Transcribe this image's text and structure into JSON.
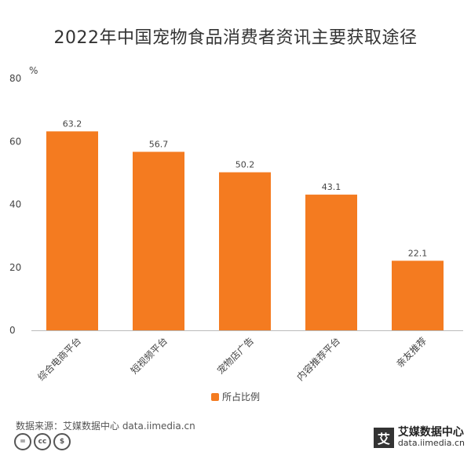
{
  "chart_data": {
    "type": "bar",
    "title": "2022年中国宠物食品消费者资讯主要获取途径",
    "unit": "%",
    "categories": [
      "综合电商平台",
      "短视频平台",
      "宠物店广告",
      "内容推荐平台",
      "亲友推荐"
    ],
    "series": [
      {
        "name": "所占比例",
        "values": [
          63.2,
          56.7,
          50.2,
          43.1,
          22.1
        ],
        "color": "#F47B20"
      }
    ],
    "data_labels": [
      "63.2",
      "56.7",
      "50.2",
      "43.1",
      "22.1"
    ],
    "ylim": [
      0,
      80
    ],
    "yticks": [
      0,
      20,
      40,
      60,
      80
    ],
    "grid": false,
    "legend_position": "bottom"
  },
  "footer": {
    "source": "数据来源：艾媒数据中心 data.iimedia.cn",
    "license_icons": [
      "=",
      "cc",
      "$"
    ],
    "brand_mark": "艾",
    "brand_name": "艾媒数据中心",
    "brand_url": "data.iimedia.cn"
  }
}
